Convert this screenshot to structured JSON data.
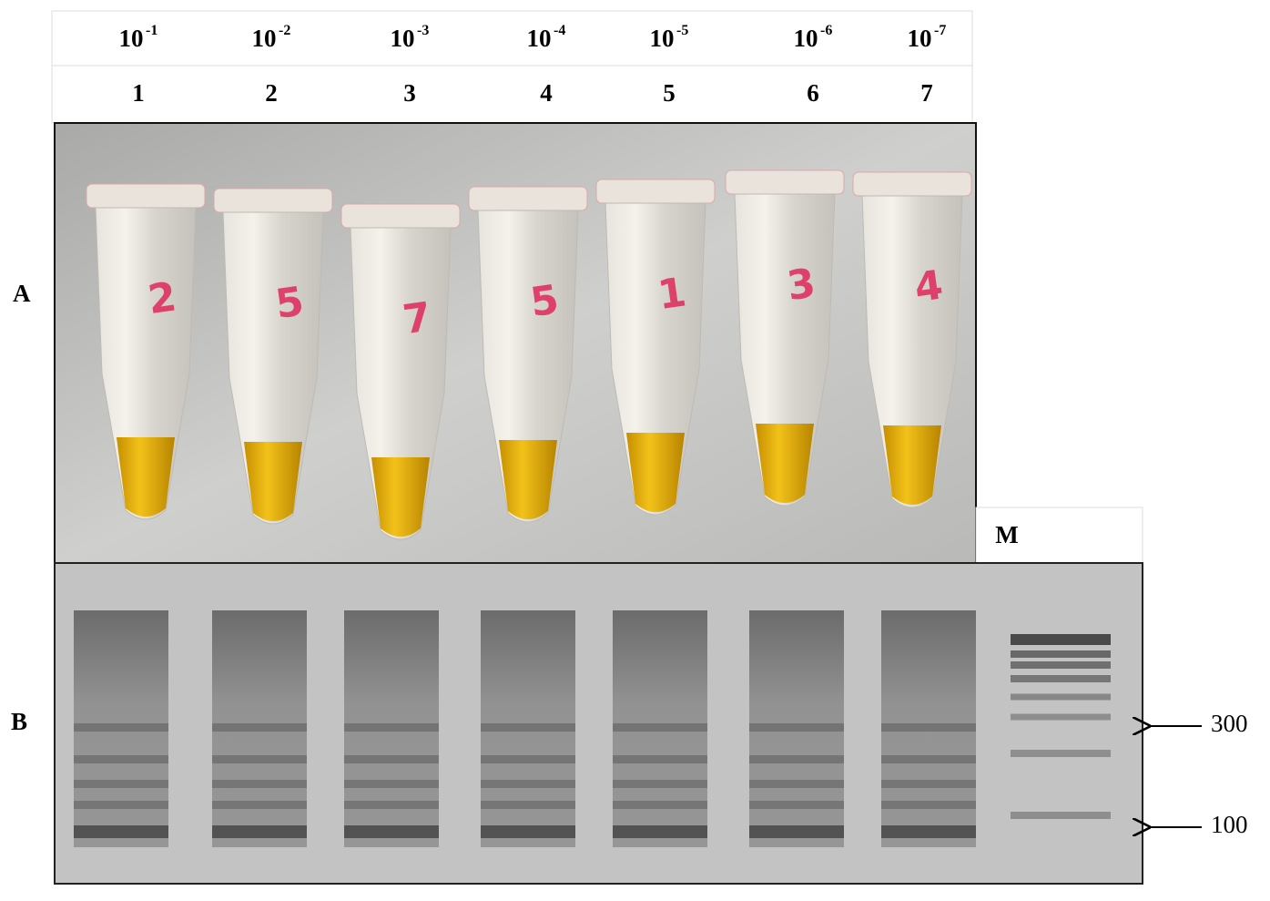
{
  "columns": [
    {
      "dilution": {
        "base": "10",
        "exponent": "-1"
      },
      "lane": "1",
      "tube_mark": "2"
    },
    {
      "dilution": {
        "base": "10",
        "exponent": "-2"
      },
      "lane": "2",
      "tube_mark": "5"
    },
    {
      "dilution": {
        "base": "10",
        "exponent": "-3"
      },
      "lane": "3",
      "tube_mark": "7"
    },
    {
      "dilution": {
        "base": "10",
        "exponent": "-4"
      },
      "lane": "4",
      "tube_mark": "5"
    },
    {
      "dilution": {
        "base": "10",
        "exponent": "-5"
      },
      "lane": "5",
      "tube_mark": "1"
    },
    {
      "dilution": {
        "base": "10",
        "exponent": "-6"
      },
      "lane": "6",
      "tube_mark": "3"
    },
    {
      "dilution": {
        "base": "10",
        "exponent": "-7"
      },
      "lane": "7",
      "tube_mark": "4"
    }
  ],
  "panels": {
    "a": "A",
    "b": "B"
  },
  "marker": {
    "label": "M",
    "sizes": [
      "300",
      "100"
    ]
  }
}
